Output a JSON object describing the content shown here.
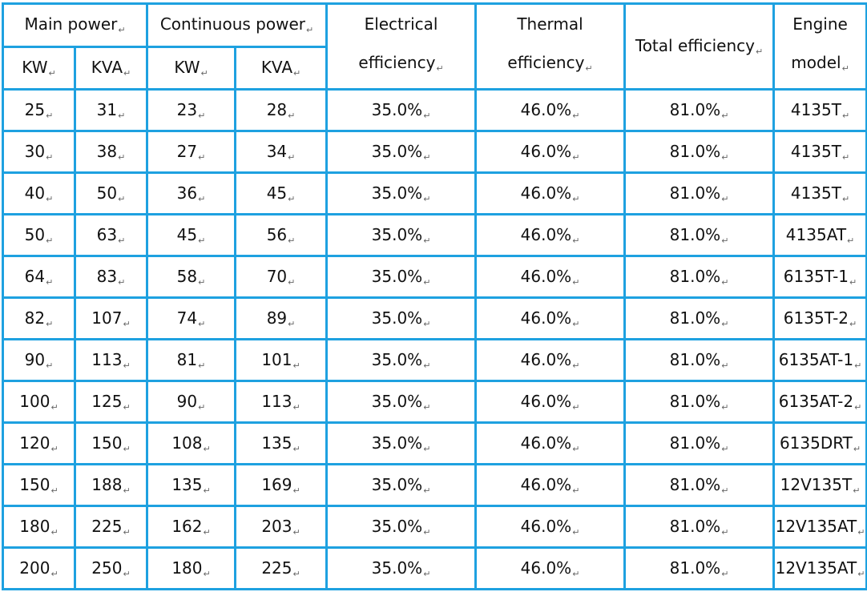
{
  "table": {
    "headers": {
      "main_power": "Main power",
      "continuous_power": "Continuous power",
      "electrical_line1": "Electrical",
      "electrical_line2": "efficiency",
      "thermal_line1": "Thermal",
      "thermal_line2": "efficiency",
      "total_efficiency": "Total efficiency",
      "engine_line1": "Engine",
      "engine_line2": "model",
      "kw": "KW",
      "kva": "KVA"
    },
    "paragraph_mark": "↵",
    "rows": [
      {
        "main_kw": "25",
        "main_kva": "31",
        "cont_kw": "23",
        "cont_kva": "28",
        "electrical": "35.0%",
        "thermal": "46.0%",
        "total": "81.0%",
        "engine": "4135T"
      },
      {
        "main_kw": "30",
        "main_kva": "38",
        "cont_kw": "27",
        "cont_kva": "34",
        "electrical": "35.0%",
        "thermal": "46.0%",
        "total": "81.0%",
        "engine": "4135T"
      },
      {
        "main_kw": "40",
        "main_kva": "50",
        "cont_kw": "36",
        "cont_kva": "45",
        "electrical": "35.0%",
        "thermal": "46.0%",
        "total": "81.0%",
        "engine": "4135T"
      },
      {
        "main_kw": "50",
        "main_kva": "63",
        "cont_kw": "45",
        "cont_kva": "56",
        "electrical": "35.0%",
        "thermal": "46.0%",
        "total": "81.0%",
        "engine": "4135AT"
      },
      {
        "main_kw": "64",
        "main_kva": "83",
        "cont_kw": "58",
        "cont_kva": "70",
        "electrical": "35.0%",
        "thermal": "46.0%",
        "total": "81.0%",
        "engine": "6135T-1"
      },
      {
        "main_kw": "82",
        "main_kva": "107",
        "cont_kw": "74",
        "cont_kva": "89",
        "electrical": "35.0%",
        "thermal": "46.0%",
        "total": "81.0%",
        "engine": "6135T-2"
      },
      {
        "main_kw": "90",
        "main_kva": "113",
        "cont_kw": "81",
        "cont_kva": "101",
        "electrical": "35.0%",
        "thermal": "46.0%",
        "total": "81.0%",
        "engine": "6135AT-1"
      },
      {
        "main_kw": "100",
        "main_kva": "125",
        "cont_kw": "90",
        "cont_kva": "113",
        "electrical": "35.0%",
        "thermal": "46.0%",
        "total": "81.0%",
        "engine": "6135AT-2"
      },
      {
        "main_kw": "120",
        "main_kva": "150",
        "cont_kw": "108",
        "cont_kva": "135",
        "electrical": "35.0%",
        "thermal": "46.0%",
        "total": "81.0%",
        "engine": "6135DRT"
      },
      {
        "main_kw": "150",
        "main_kva": "188",
        "cont_kw": "135",
        "cont_kva": "169",
        "electrical": "35.0%",
        "thermal": "46.0%",
        "total": "81.0%",
        "engine": "12V135T"
      },
      {
        "main_kw": "180",
        "main_kva": "225",
        "cont_kw": "162",
        "cont_kva": "203",
        "electrical": "35.0%",
        "thermal": "46.0%",
        "total": "81.0%",
        "engine": "12V135AT"
      },
      {
        "main_kw": "200",
        "main_kva": "250",
        "cont_kw": "180",
        "cont_kva": "225",
        "electrical": "35.0%",
        "thermal": "46.0%",
        "total": "81.0%",
        "engine": "12V135AT"
      }
    ]
  }
}
